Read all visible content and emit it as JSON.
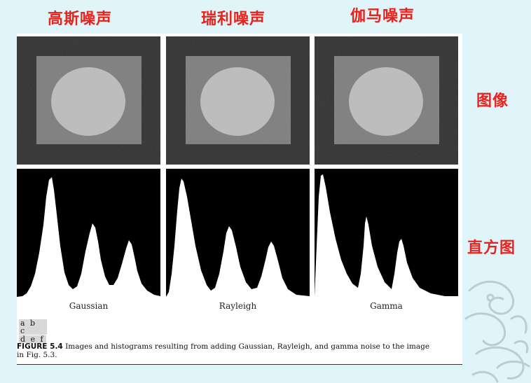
{
  "headings": {
    "gaussian_noise": "高斯噪声",
    "rayleigh_noise": "瑞利噪声",
    "gamma_noise": "伽马噪声",
    "image_row": "图像",
    "histogram_row": "直方图"
  },
  "histogram_labels": [
    "Gaussian",
    "Rayleigh",
    "Gamma"
  ],
  "layout_key": {
    "row1": "a b c",
    "row2": "d e f"
  },
  "caption": {
    "figure_number": "FIGURE 5.4",
    "text": "Images and histograms resulting from adding Gaussian, Rayleigh, and gamma noise to the image",
    "text_line2": "in Fig. 5.3."
  },
  "colors": {
    "heading": "#e8231e",
    "slide_background": "#dff5fa",
    "histogram_fill": "#ffffff",
    "histogram_background": "#000000"
  }
}
